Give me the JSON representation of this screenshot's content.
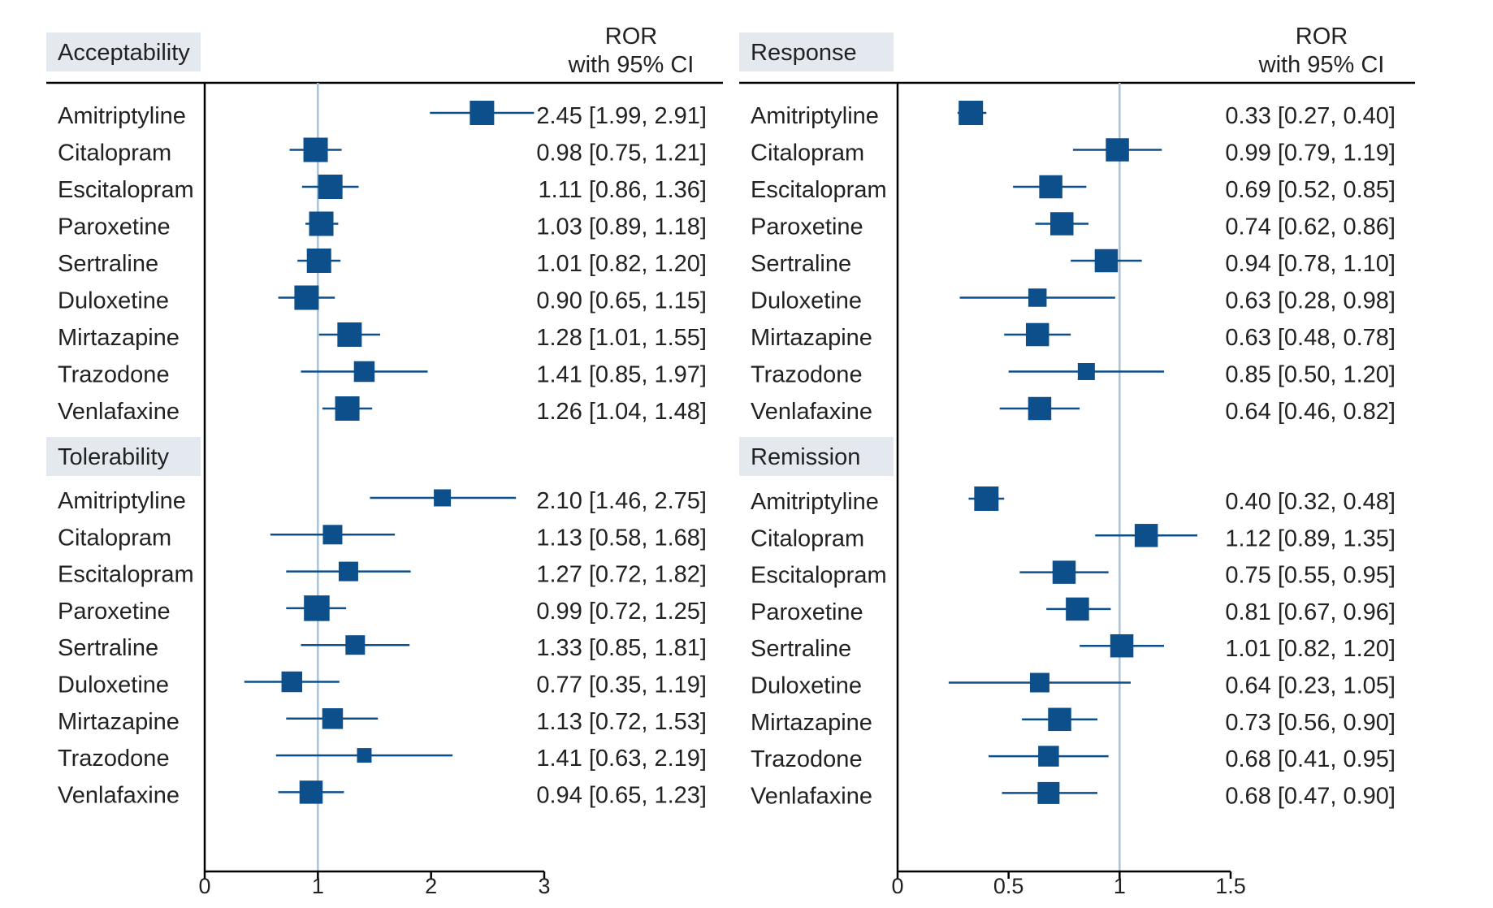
{
  "colors": {
    "marker": "#0d4f8b",
    "ref_line": "#a9c3d8",
    "axis": "#000000",
    "section_bg": "#e4e9ef"
  },
  "chart_data": [
    {
      "type": "forest",
      "column_header": [
        "ROR",
        "with 95% CI"
      ],
      "xlim": [
        0,
        3
      ],
      "ticks": [
        0,
        1,
        2,
        3
      ],
      "tick_labels": [
        "0",
        "1",
        "2",
        "3"
      ],
      "ref_value": 1,
      "groups": [
        {
          "title": "Acceptability",
          "rows": [
            {
              "drug": "Amitriptyline",
              "est": 2.45,
              "lo": 1.99,
              "hi": 2.91,
              "label": "2.45 [1.99, 2.91]",
              "w": 1.0
            },
            {
              "drug": "Citalopram",
              "est": 0.98,
              "lo": 0.75,
              "hi": 1.21,
              "label": "0.98 [0.75, 1.21]",
              "w": 1.0
            },
            {
              "drug": "Escitalopram",
              "est": 1.11,
              "lo": 0.86,
              "hi": 1.36,
              "label": "1.11 [0.86, 1.36]",
              "w": 1.0
            },
            {
              "drug": "Paroxetine",
              "est": 1.03,
              "lo": 0.89,
              "hi": 1.18,
              "label": "1.03 [0.89, 1.18]",
              "w": 1.0
            },
            {
              "drug": "Sertraline",
              "est": 1.01,
              "lo": 0.82,
              "hi": 1.2,
              "label": "1.01 [0.82, 1.20]",
              "w": 1.0
            },
            {
              "drug": "Duloxetine",
              "est": 0.9,
              "lo": 0.65,
              "hi": 1.15,
              "label": "0.90 [0.65, 1.15]",
              "w": 1.0
            },
            {
              "drug": "Mirtazapine",
              "est": 1.28,
              "lo": 1.01,
              "hi": 1.55,
              "label": "1.28 [1.01, 1.55]",
              "w": 1.0
            },
            {
              "drug": "Trazodone",
              "est": 1.41,
              "lo": 0.85,
              "hi": 1.97,
              "label": "1.41 [0.85, 1.97]",
              "w": 0.85
            },
            {
              "drug": "Venlafaxine",
              "est": 1.26,
              "lo": 1.04,
              "hi": 1.48,
              "label": "1.26 [1.04, 1.48]",
              "w": 1.0
            }
          ]
        },
        {
          "title": "Tolerability",
          "rows": [
            {
              "drug": "Amitriptyline",
              "est": 2.1,
              "lo": 1.46,
              "hi": 2.75,
              "label": "2.10 [1.46, 2.75]",
              "w": 0.7
            },
            {
              "drug": "Citalopram",
              "est": 1.13,
              "lo": 0.58,
              "hi": 1.68,
              "label": "1.13 [0.58, 1.68]",
              "w": 0.8
            },
            {
              "drug": "Escitalopram",
              "est": 1.27,
              "lo": 0.72,
              "hi": 1.82,
              "label": "1.27 [0.72, 1.82]",
              "w": 0.8
            },
            {
              "drug": "Paroxetine",
              "est": 0.99,
              "lo": 0.72,
              "hi": 1.25,
              "label": "0.99 [0.72, 1.25]",
              "w": 1.05
            },
            {
              "drug": "Sertraline",
              "est": 1.33,
              "lo": 0.85,
              "hi": 1.81,
              "label": "1.33 [0.85, 1.81]",
              "w": 0.8
            },
            {
              "drug": "Duloxetine",
              "est": 0.77,
              "lo": 0.35,
              "hi": 1.19,
              "label": "0.77 [0.35, 1.19]",
              "w": 0.85
            },
            {
              "drug": "Mirtazapine",
              "est": 1.13,
              "lo": 0.72,
              "hi": 1.53,
              "label": "1.13 [0.72, 1.53]",
              "w": 0.85
            },
            {
              "drug": "Trazodone",
              "est": 1.41,
              "lo": 0.63,
              "hi": 2.19,
              "label": "1.41 [0.63, 2.19]",
              "w": 0.6
            },
            {
              "drug": "Venlafaxine",
              "est": 0.94,
              "lo": 0.65,
              "hi": 1.23,
              "label": "0.94 [0.65, 1.23]",
              "w": 0.95
            }
          ]
        }
      ]
    },
    {
      "type": "forest",
      "column_header": [
        "ROR",
        "with 95% CI"
      ],
      "xlim": [
        0,
        1.5
      ],
      "ticks": [
        0,
        0.5,
        1,
        1.5
      ],
      "tick_labels": [
        "0",
        "0.5",
        "1",
        "1.5"
      ],
      "ref_value": 1,
      "groups": [
        {
          "title": "Response",
          "rows": [
            {
              "drug": "Amitriptyline",
              "est": 0.33,
              "lo": 0.27,
              "hi": 0.4,
              "label": "0.33 [0.27, 0.40]",
              "w": 1.0
            },
            {
              "drug": "Citalopram",
              "est": 0.99,
              "lo": 0.79,
              "hi": 1.19,
              "label": "0.99 [0.79, 1.19]",
              "w": 0.95
            },
            {
              "drug": "Escitalopram",
              "est": 0.69,
              "lo": 0.52,
              "hi": 0.85,
              "label": "0.69 [0.52, 0.85]",
              "w": 0.95
            },
            {
              "drug": "Paroxetine",
              "est": 0.74,
              "lo": 0.62,
              "hi": 0.86,
              "label": "0.74 [0.62, 0.86]",
              "w": 0.95
            },
            {
              "drug": "Sertraline",
              "est": 0.94,
              "lo": 0.78,
              "hi": 1.1,
              "label": "0.94 [0.78, 1.10]",
              "w": 0.95
            },
            {
              "drug": "Duloxetine",
              "est": 0.63,
              "lo": 0.28,
              "hi": 0.98,
              "label": "0.63 [0.28, 0.98]",
              "w": 0.75
            },
            {
              "drug": "Mirtazapine",
              "est": 0.63,
              "lo": 0.48,
              "hi": 0.78,
              "label": "0.63 [0.48, 0.78]",
              "w": 0.95
            },
            {
              "drug": "Trazodone",
              "est": 0.85,
              "lo": 0.5,
              "hi": 1.2,
              "label": "0.85 [0.50, 1.20]",
              "w": 0.7
            },
            {
              "drug": "Venlafaxine",
              "est": 0.64,
              "lo": 0.46,
              "hi": 0.82,
              "label": "0.64 [0.46, 0.82]",
              "w": 0.95
            }
          ]
        },
        {
          "title": "Remission",
          "rows": [
            {
              "drug": "Amitriptyline",
              "est": 0.4,
              "lo": 0.32,
              "hi": 0.48,
              "label": "0.40 [0.32, 0.48]",
              "w": 1.0
            },
            {
              "drug": "Citalopram",
              "est": 1.12,
              "lo": 0.89,
              "hi": 1.35,
              "label": "1.12 [0.89, 1.35]",
              "w": 0.95
            },
            {
              "drug": "Escitalopram",
              "est": 0.75,
              "lo": 0.55,
              "hi": 0.95,
              "label": "0.75 [0.55, 0.95]",
              "w": 0.95
            },
            {
              "drug": "Paroxetine",
              "est": 0.81,
              "lo": 0.67,
              "hi": 0.96,
              "label": "0.81 [0.67, 0.96]",
              "w": 0.95
            },
            {
              "drug": "Sertraline",
              "est": 1.01,
              "lo": 0.82,
              "hi": 1.2,
              "label": "1.01 [0.82, 1.20]",
              "w": 0.95
            },
            {
              "drug": "Duloxetine",
              "est": 0.64,
              "lo": 0.23,
              "hi": 1.05,
              "label": "0.64 [0.23, 1.05]",
              "w": 0.8
            },
            {
              "drug": "Mirtazapine",
              "est": 0.73,
              "lo": 0.56,
              "hi": 0.9,
              "label": "0.73 [0.56, 0.90]",
              "w": 0.95
            },
            {
              "drug": "Trazodone",
              "est": 0.68,
              "lo": 0.41,
              "hi": 0.95,
              "label": "0.68 [0.41, 0.95]",
              "w": 0.85
            },
            {
              "drug": "Venlafaxine",
              "est": 0.68,
              "lo": 0.47,
              "hi": 0.9,
              "label": "0.68 [0.47, 0.90]",
              "w": 0.9
            }
          ]
        }
      ]
    }
  ]
}
